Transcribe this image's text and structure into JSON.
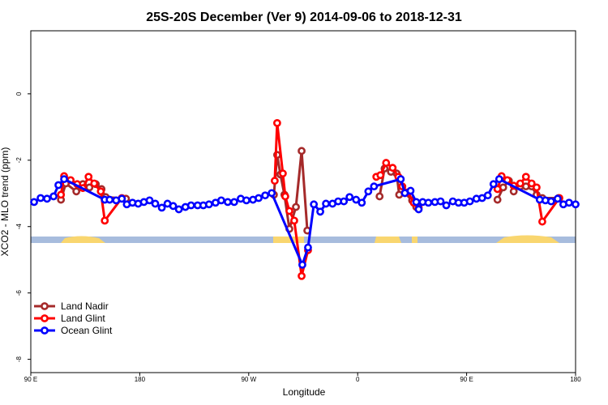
{
  "chart_data": {
    "type": "line",
    "title": "25S-20S December (Ver 9)   2014-09-06 to 2018-12-31",
    "x_label": "Longitude",
    "y_label": "XCO2 - MLO trend (ppm)",
    "xlim": [
      90,
      540
    ],
    "xticks": [
      {
        "value": 90,
        "label": "90 E"
      },
      {
        "value": 180,
        "label": "180"
      },
      {
        "value": 270,
        "label": "90 W"
      },
      {
        "value": 360,
        "label": "0"
      },
      {
        "value": 450,
        "label": "90 E"
      },
      {
        "value": 540,
        "label": "180"
      }
    ],
    "ylim": [
      -8.4,
      1.9
    ],
    "yticks": [
      0,
      -2,
      -4,
      -6,
      -8
    ],
    "legend": "bottomleft",
    "series": [
      {
        "name": "Land Nadir",
        "color": "#a52a2a",
        "x": [
          114.9,
          118.9,
          127.6,
          133.0,
          138.4,
          143.7,
          148.4,
          151.8,
          168.6,
          null,
          290.8,
          293.5,
          296.2,
          299.5,
          303.6,
          309.0,
          313.7,
          318.4,
          null,
          378.1,
          382.2,
          387.5,
          392.2,
          394.3,
          399.0,
          405.0,
          408.4,
          null,
          475.5,
          480.2,
          484.9,
          488.9,
          494.3,
          499.0,
          503.7,
          507.8,
          512.5,
          525.9
        ],
        "values": [
          -3.19,
          -2.7,
          -2.94,
          -2.72,
          -2.82,
          -2.72,
          -2.87,
          -3.11,
          -3.16,
          null,
          -3.04,
          -1.84,
          -2.43,
          -3.04,
          -4.07,
          -3.41,
          -1.72,
          -4.12,
          null,
          -3.09,
          -2.25,
          -2.35,
          -2.4,
          -3.04,
          -2.99,
          -3.21,
          -3.41,
          null,
          -3.19,
          -2.82,
          -2.62,
          -2.94,
          -2.79,
          -2.79,
          -2.79,
          -3.04,
          -3.14,
          -3.14
        ]
      },
      {
        "name": "Land Glint",
        "color": "#ff0000",
        "x": [
          114.9,
          117.5,
          122.9,
          128.3,
          133.0,
          137.7,
          142.4,
          147.8,
          151.1,
          165.2,
          null,
          291.5,
          293.5,
          298.2,
          300.2,
          303.6,
          307.6,
          313.7,
          319.0,
          null,
          375.4,
          378.8,
          383.5,
          388.9,
          393.6,
          396.9,
          401.6,
          406.3,
          410.4,
          null,
          475.5,
          478.9,
          483.6,
          488.9,
          494.3,
          499.0,
          503.7,
          507.8,
          512.5,
          526.6
        ],
        "values": [
          -3.04,
          -2.48,
          -2.6,
          -2.72,
          -2.84,
          -2.5,
          -2.7,
          -2.94,
          -3.82,
          -3.14,
          null,
          -2.62,
          -0.88,
          -2.4,
          -3.09,
          -3.53,
          -3.82,
          -5.49,
          -4.71,
          null,
          -2.5,
          -2.45,
          -2.08,
          -2.23,
          -2.5,
          -2.79,
          -2.97,
          -3.28,
          -3.43,
          null,
          -2.87,
          -2.48,
          -2.6,
          -2.77,
          -2.7,
          -2.5,
          -2.7,
          -2.82,
          -3.85,
          -3.14
        ]
      },
      {
        "name": "Ocean Glint",
        "color": "#0000ff",
        "x": [
          92.7,
          98.1,
          103.4,
          108.8,
          112.8,
          117.5,
          151.1,
          155.1,
          160.5,
          165.2,
          169.3,
          174.0,
          178.7,
          183.4,
          188.1,
          192.8,
          198.2,
          202.9,
          207.6,
          212.3,
          217.7,
          222.4,
          227.8,
          232.5,
          237.2,
          242.6,
          247.3,
          252.7,
          258.0,
          263.4,
          268.1,
          273.5,
          278.2,
          283.6,
          289.0,
          314.3,
          319.0,
          323.8,
          329.1,
          333.8,
          339.2,
          343.9,
          348.6,
          353.3,
          358.7,
          363.4,
          368.8,
          373.5,
          395.6,
          399.0,
          403.7,
          408.4,
          410.4,
          413.7,
          418.4,
          423.8,
          428.5,
          433.2,
          438.6,
          443.3,
          448.0,
          452.7,
          458.1,
          462.8,
          467.5,
          472.2,
          476.9,
          510.4,
          515.1,
          519.8,
          525.2,
          529.9,
          534.6,
          540.0
        ],
        "values": [
          -3.26,
          -3.14,
          -3.16,
          -3.09,
          -2.75,
          -2.57,
          -3.19,
          -3.19,
          -3.21,
          -3.16,
          -3.33,
          -3.28,
          -3.31,
          -3.26,
          -3.21,
          -3.31,
          -3.43,
          -3.31,
          -3.38,
          -3.48,
          -3.41,
          -3.36,
          -3.36,
          -3.36,
          -3.33,
          -3.28,
          -3.21,
          -3.26,
          -3.26,
          -3.16,
          -3.21,
          -3.19,
          -3.14,
          -3.06,
          -2.99,
          -5.15,
          -4.63,
          -3.33,
          -3.55,
          -3.31,
          -3.31,
          -3.24,
          -3.24,
          -3.11,
          -3.19,
          -3.28,
          -2.94,
          -2.79,
          -2.57,
          -2.99,
          -2.92,
          -3.26,
          -3.48,
          -3.26,
          -3.28,
          -3.26,
          -3.24,
          -3.36,
          -3.24,
          -3.28,
          -3.28,
          -3.24,
          -3.16,
          -3.14,
          -3.06,
          -2.72,
          -2.57,
          -3.19,
          -3.21,
          -3.24,
          -3.16,
          -3.33,
          -3.28,
          -3.33
        ]
      }
    ]
  }
}
